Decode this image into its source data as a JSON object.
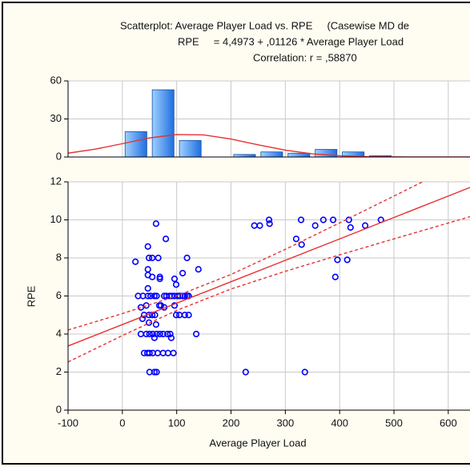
{
  "chart_data": [
    {
      "type": "histogram",
      "bins": [
        0,
        50,
        100,
        150,
        200,
        250,
        300,
        350,
        400,
        450,
        500
      ],
      "values": [
        20,
        53,
        13,
        0,
        2,
        4,
        3,
        6,
        4,
        1
      ],
      "color": "#4a9af0",
      "curve": {
        "color": "#e83030",
        "x": [
          -100,
          -50,
          0,
          50,
          100,
          150,
          200,
          250,
          300,
          350,
          400,
          450,
          500,
          550,
          600,
          640
        ],
        "values": [
          3.0,
          6.2,
          10.5,
          15.0,
          17.7,
          17.4,
          14.2,
          9.6,
          5.4,
          2.5,
          1.0,
          0.3,
          0.1,
          0.0,
          0.0,
          0.0
        ]
      },
      "xlim": [
        -100,
        640
      ],
      "xticks": [
        -100,
        0,
        100,
        200,
        300,
        400,
        500,
        600
      ],
      "ylim": [
        0,
        60
      ],
      "yticks": [
        0,
        30,
        60
      ],
      "grid": true
    },
    {
      "type": "scatter",
      "title": "Scatterplot: Average Player Load vs. RPE     (Casewise MD de",
      "subtitle": "RPE     = 4,4973 + ,01126 * Average Player Load",
      "annotation": "Correlation: r = ,58870",
      "xlabel": "Average Player Load",
      "ylabel": "RPE",
      "color": "#0000ff",
      "x": [
        62,
        80,
        47,
        24,
        49,
        55,
        66,
        119,
        47,
        140,
        47,
        55,
        69,
        69,
        96,
        111,
        99,
        47,
        29,
        38,
        47,
        52,
        59,
        63,
        77,
        81,
        87,
        91,
        96,
        102,
        106,
        111,
        115,
        119,
        122,
        44,
        34,
        68,
        71,
        77,
        96,
        40,
        49,
        55,
        60,
        99,
        105,
        115,
        122,
        37,
        49,
        62,
        34,
        44,
        50,
        56,
        63,
        69,
        75,
        83,
        88,
        136,
        59,
        90,
        40,
        46,
        50,
        56,
        65,
        75,
        84,
        94,
        50,
        59,
        63,
        227,
        336,
        243,
        253,
        270,
        271,
        329,
        355,
        370,
        388,
        417,
        420,
        447,
        476,
        320,
        330,
        396,
        414,
        392
      ],
      "values": [
        9.8,
        9.0,
        8.6,
        7.8,
        8,
        8,
        8,
        8,
        7.4,
        7.4,
        7.1,
        7.0,
        7.0,
        6.9,
        6.9,
        7.2,
        6.6,
        6.4,
        6,
        6,
        6,
        6,
        6,
        6,
        6,
        6,
        6,
        6,
        6,
        6,
        6,
        6,
        6,
        6,
        6,
        5.5,
        5.4,
        5.5,
        5.5,
        5.4,
        5.5,
        5,
        5,
        5,
        5,
        5,
        5,
        5,
        5,
        4.8,
        4.6,
        4.5,
        4,
        4,
        4,
        4,
        4,
        4,
        4,
        4,
        4,
        4,
        3.8,
        3.8,
        3,
        3,
        3,
        3,
        3,
        3,
        3,
        3,
        2,
        2,
        2,
        2,
        2,
        9.7,
        9.7,
        10,
        9.8,
        10,
        9.7,
        10,
        10,
        10,
        9.6,
        9.7,
        10,
        9.0,
        8.7,
        7.9,
        7.9,
        7.0
      ],
      "fit": {
        "color": "#e83030",
        "x": [
          -100,
          0,
          100,
          200,
          300,
          400,
          500,
          600,
          640
        ],
        "values": [
          3.371,
          4.497,
          5.623,
          6.749,
          7.875,
          9.001,
          10.127,
          11.253,
          11.704
        ],
        "upper": [
          4.211,
          5.074,
          6.005,
          7.131,
          8.452,
          9.841,
          11.252,
          12.671,
          13.241
        ],
        "lower": [
          2.531,
          3.92,
          5.241,
          6.367,
          7.298,
          8.161,
          9.002,
          9.835,
          10.167
        ]
      },
      "xlim": [
        -100,
        640
      ],
      "xticks": [
        -100,
        0,
        100,
        200,
        300,
        400,
        500,
        600
      ],
      "ylim": [
        0,
        12
      ],
      "yticks": [
        0,
        2,
        4,
        6,
        8,
        10,
        12
      ],
      "grid": true
    }
  ]
}
